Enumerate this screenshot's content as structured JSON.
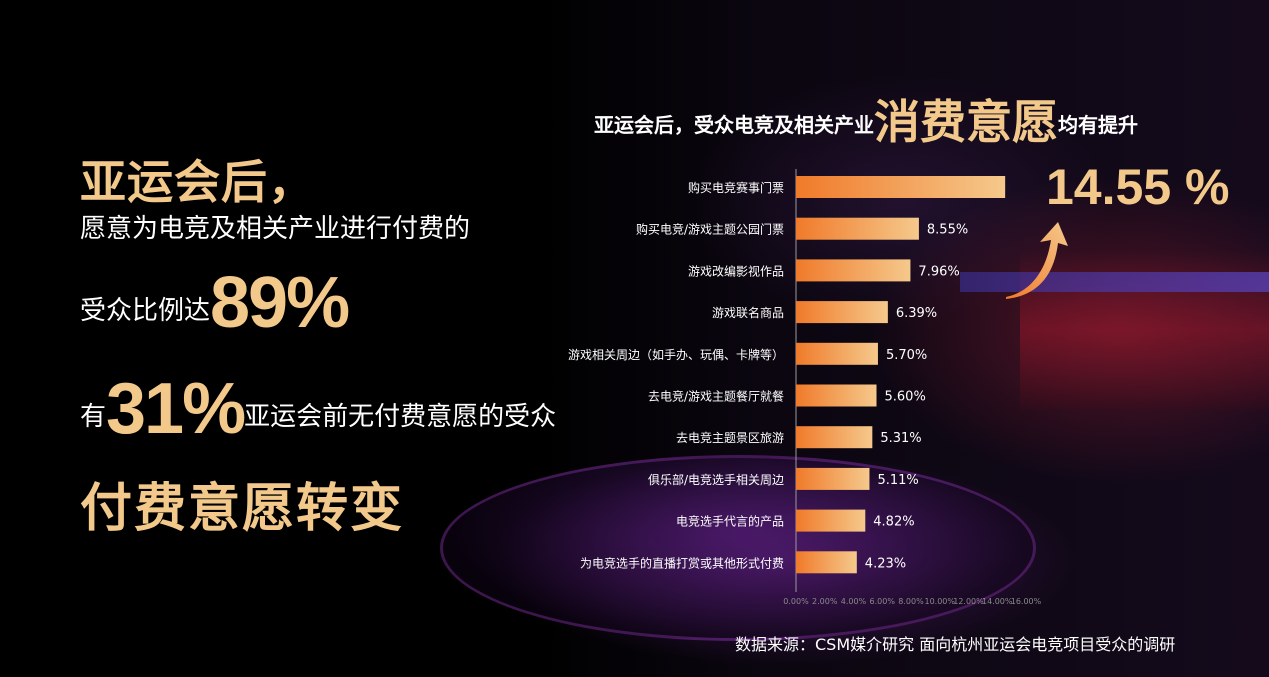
{
  "left": {
    "headline": "亚运会后，",
    "line1": "愿意为电竞及相关产业进行付费的",
    "line2_prefix": "受众比例达",
    "line2_big": "89%",
    "line3_prefix": "有",
    "line3_big": "31%",
    "line3_suffix": "亚运会前无付费意愿的受众",
    "conclusion": "付费意愿转变"
  },
  "chart_title": {
    "prefix": "亚运会后，受众电竞及相关产业",
    "emphasis": "消费意愿",
    "suffix": "均有提升"
  },
  "highlight": "14.55 %",
  "source": "数据来源：CSM媒介研究 面向杭州亚运会电竞项目受众的调研",
  "colors": {
    "accent": "#f3c98b",
    "bar_start": "#f07a2a",
    "bar_end": "#f5c98c"
  },
  "chart_data": {
    "type": "bar",
    "orientation": "horizontal",
    "categories": [
      "购买电竞赛事门票",
      "购买电竞/游戏主题公园门票",
      "游戏改编影视作品",
      "游戏联名商品",
      "游戏相关周边（如手办、玩偶、卡牌等）",
      "去电竞/游戏主题餐厅就餐",
      "去电竞主题景区旅游",
      "俱乐部/电竞选手相关周边",
      "电竞选手代言的产品",
      "为电竞选手的直播打赏或其他形式付费"
    ],
    "values": [
      14.55,
      8.55,
      7.96,
      6.39,
      5.7,
      5.6,
      5.31,
      5.11,
      4.82,
      4.23
    ],
    "value_labels": [
      "",
      "8.55%",
      "7.96%",
      "6.39%",
      "5.70%",
      "5.60%",
      "5.31%",
      "5.11%",
      "4.82%",
      "4.23%"
    ],
    "xlim": [
      0,
      16
    ],
    "ticks": [
      "0.00%",
      "2.00%",
      "4.00%",
      "6.00%",
      "8.00%",
      "10.00%",
      "12.00%",
      "14.00%",
      "16.00%"
    ],
    "grid": false
  }
}
